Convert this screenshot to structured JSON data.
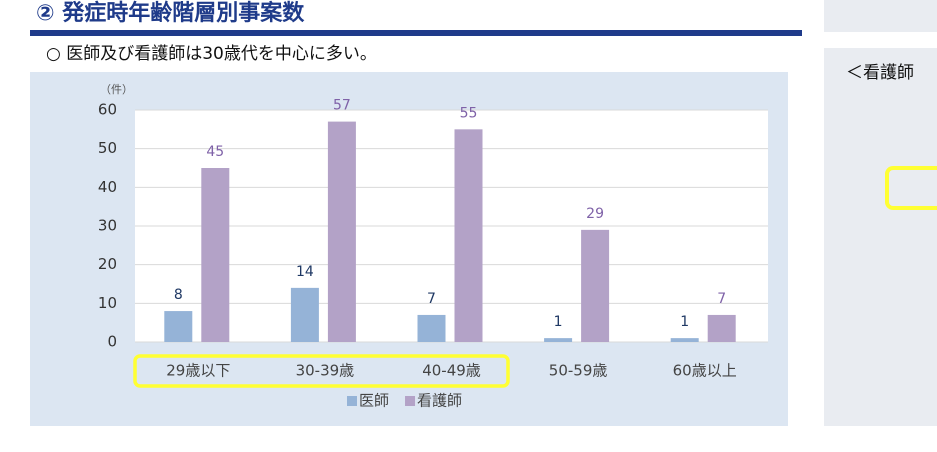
{
  "chart_data": {
    "type": "bar",
    "title": "② 発症時年齢階層別事案数",
    "subtitle": "○ 医師及び看護師は30歳代を中心に多い。",
    "ylabel": "（件）",
    "annotations": [
      "＜看護師"
    ],
    "categories": [
      "29歳以下",
      "30-39歳",
      "40-49歳",
      "50-59歳",
      "60歳以上"
    ],
    "series": [
      {
        "name": "医師",
        "color": "#95b3d7",
        "label_color": "#1f3864",
        "values": [
          8,
          14,
          7,
          1,
          1
        ]
      },
      {
        "name": "看護師",
        "color": "#b3a2c7",
        "label_color": "#7f62a8",
        "values": [
          45,
          57,
          55,
          29,
          7
        ]
      }
    ],
    "ylim": [
      0,
      60
    ],
    "yticks": [
      0,
      10,
      20,
      30,
      40,
      50,
      60
    ],
    "grid": true
  }
}
